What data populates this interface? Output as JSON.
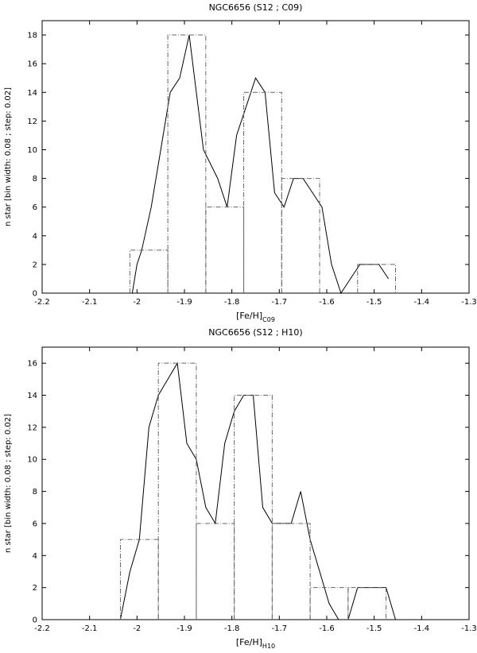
{
  "chart_data": [
    {
      "type": "line",
      "title": "NGC6656 (S12 ; C09)",
      "xlabel_main": "[Fe/H]",
      "xlabel_sub": "C09",
      "ylabel": "n star [bin width: 0.08 ; step: 0.02]",
      "xlim": [
        -2.2,
        -1.3
      ],
      "ylim": [
        0,
        19
      ],
      "x_ticks": [
        -2.2,
        -2.1,
        -2.0,
        -1.9,
        -1.8,
        -1.7,
        -1.6,
        -1.5,
        -1.4,
        -1.3
      ],
      "x_tick_labels": [
        "-2.2",
        "-2.1",
        "-2",
        "-1.9",
        "-1.8",
        "-1.7",
        "-1.6",
        "-1.5",
        "-1.4",
        "-1.3"
      ],
      "y_ticks": [
        0,
        2,
        4,
        6,
        8,
        10,
        12,
        14,
        16,
        18
      ],
      "y_tick_labels": [
        "0",
        "2",
        "4",
        "6",
        "8",
        "10",
        "12",
        "14",
        "16",
        "18"
      ],
      "grid": false,
      "series": [
        {
          "style": "solid",
          "x": [
            -2.01,
            -2.0,
            -1.99,
            -1.97,
            -1.95,
            -1.93,
            -1.91,
            -1.89,
            -1.86,
            -1.83,
            -1.81,
            -1.79,
            -1.77,
            -1.75,
            -1.73,
            -1.71,
            -1.69,
            -1.67,
            -1.65,
            -1.63,
            -1.61,
            -1.59,
            -1.57,
            -1.55,
            -1.53,
            -1.51,
            -1.49,
            -1.47
          ],
          "y": [
            0,
            2,
            3,
            6,
            10,
            14,
            15,
            18,
            10,
            8,
            6,
            11,
            13,
            15,
            14,
            7,
            6,
            8,
            8,
            7,
            6,
            2,
            0,
            1,
            2,
            2,
            2,
            1
          ]
        },
        {
          "style": "dash-dot-step",
          "bins": [
            {
              "x0": -2.015,
              "x1": -1.935,
              "count": 3
            },
            {
              "x0": -1.935,
              "x1": -1.855,
              "count": 18
            },
            {
              "x0": -1.855,
              "x1": -1.775,
              "count": 6
            },
            {
              "x0": -1.775,
              "x1": -1.695,
              "count": 14
            },
            {
              "x0": -1.695,
              "x1": -1.615,
              "count": 8
            },
            {
              "x0": -1.615,
              "x1": -1.535,
              "count": 0
            },
            {
              "x0": -1.535,
              "x1": -1.455,
              "count": 2
            }
          ]
        }
      ]
    },
    {
      "type": "line",
      "title": "NGC6656 (S12 ; H10)",
      "xlabel_main": "[Fe/H]",
      "xlabel_sub": "H10",
      "ylabel": "n star [bin width: 0.08 ; step: 0.02]",
      "xlim": [
        -2.2,
        -1.3
      ],
      "ylim": [
        0,
        17
      ],
      "x_ticks": [
        -2.2,
        -2.1,
        -2.0,
        -1.9,
        -1.8,
        -1.7,
        -1.6,
        -1.5,
        -1.4,
        -1.3
      ],
      "x_tick_labels": [
        "-2.2",
        "-2.1",
        "-2",
        "-1.9",
        "-1.8",
        "-1.7",
        "-1.6",
        "-1.5",
        "-1.4",
        "-1.3"
      ],
      "y_ticks": [
        0,
        2,
        4,
        6,
        8,
        10,
        12,
        14,
        16
      ],
      "y_tick_labels": [
        "0",
        "2",
        "4",
        "6",
        "8",
        "10",
        "12",
        "14",
        "16"
      ],
      "grid": false,
      "series": [
        {
          "style": "solid",
          "x": [
            -2.035,
            -2.015,
            -1.995,
            -1.975,
            -1.955,
            -1.935,
            -1.915,
            -1.895,
            -1.875,
            -1.855,
            -1.835,
            -1.815,
            -1.795,
            -1.775,
            -1.755,
            -1.735,
            -1.715,
            -1.695,
            -1.675,
            -1.655,
            -1.635,
            -1.615,
            -1.595,
            -1.575,
            -1.555,
            -1.535,
            -1.515,
            -1.495,
            -1.475,
            -1.455
          ],
          "y": [
            0,
            3,
            5,
            12,
            14,
            15,
            16,
            11,
            10,
            7,
            6,
            11,
            13,
            14,
            14,
            7,
            6,
            6,
            6,
            8,
            5,
            3,
            1,
            0,
            0,
            2,
            2,
            2,
            2,
            0
          ]
        },
        {
          "style": "dash-dot-step",
          "bins": [
            {
              "x0": -2.035,
              "x1": -1.955,
              "count": 5
            },
            {
              "x0": -1.955,
              "x1": -1.875,
              "count": 16
            },
            {
              "x0": -1.875,
              "x1": -1.795,
              "count": 6
            },
            {
              "x0": -1.795,
              "x1": -1.715,
              "count": 14
            },
            {
              "x0": -1.715,
              "x1": -1.635,
              "count": 6
            },
            {
              "x0": -1.635,
              "x1": -1.555,
              "count": 2
            },
            {
              "x0": -1.555,
              "x1": -1.475,
              "count": 2
            }
          ]
        }
      ]
    }
  ]
}
